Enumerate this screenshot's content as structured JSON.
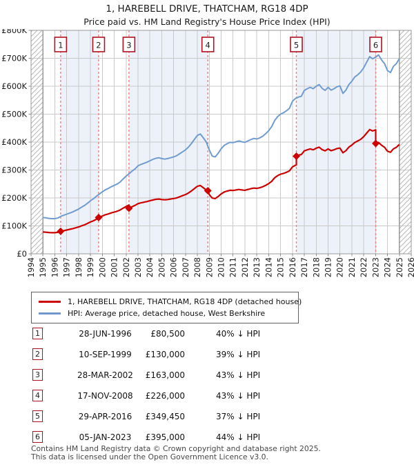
{
  "header": {
    "title": "1, HAREBELL DRIVE, THATCHAM, RG18 4DP",
    "subtitle": "Price paid vs. HM Land Registry's House Price Index (HPI)"
  },
  "legend": {
    "items": [
      {
        "label": "1, HAREBELL DRIVE, THATCHAM, RG18 4DP (detached house)",
        "color": "#cc0000"
      },
      {
        "label": "HPI: Average price, detached house, West Berkshire",
        "color": "#7098cc"
      }
    ]
  },
  "chart_data": {
    "type": "line",
    "title": "1, HAREBELL DRIVE, THATCHAM, RG18 4DP",
    "subtitle": "Price paid vs. HM Land Registry's House Price Index (HPI)",
    "ylabel": "",
    "xlabel": "",
    "ylim": [
      0,
      800000
    ],
    "xlim": [
      1994,
      2026
    ],
    "grid": true,
    "legend_position": "below",
    "y_tick_labels": [
      "£0",
      "£100K",
      "£200K",
      "£300K",
      "£400K",
      "£500K",
      "£600K",
      "£700K",
      "£800K"
    ],
    "x_tick_labels": [
      "1994",
      "1995",
      "1996",
      "1997",
      "1998",
      "1999",
      "2000",
      "2001",
      "2002",
      "2003",
      "2004",
      "2005",
      "2006",
      "2007",
      "2008",
      "2009",
      "2010",
      "2011",
      "2012",
      "2013",
      "2014",
      "2015",
      "2016",
      "2017",
      "2018",
      "2019",
      "2020",
      "2021",
      "2022",
      "2023",
      "2024",
      "2025",
      "2026"
    ],
    "colors": {
      "property": "#cc0000",
      "hpi": "#6f9bd1",
      "band": "#edf1fa",
      "dashed": "#f07e7e",
      "grid": "#c9c9c9",
      "border": "#999999",
      "hatch": "#b8b8b8",
      "badge_border": "#b01020"
    },
    "data_start_year": 1995.0,
    "data_end_year": 2025.0,
    "hatch_regions": [
      [
        1994,
        1995
      ],
      [
        2025,
        2026
      ]
    ],
    "series": [
      {
        "name": "HPI: Average price, detached house, West Berkshire",
        "role": "hpi",
        "start_year": 1995.0,
        "step_years": 0.25,
        "values_gbp": [
          130000,
          129000,
          127000,
          126000,
          126000,
          128000,
          134000,
          138000,
          142000,
          146000,
          150000,
          155000,
          160000,
          167000,
          173000,
          181000,
          190000,
          197000,
          206000,
          214000,
          222000,
          229000,
          234000,
          240000,
          245000,
          250000,
          257000,
          268000,
          278000,
          287000,
          296000,
          304000,
          315000,
          320000,
          324000,
          328000,
          333000,
          338000,
          342000,
          344000,
          341000,
          339000,
          341000,
          344000,
          347000,
          351000,
          358000,
          365000,
          372000,
          382000,
          395000,
          410000,
          424000,
          429000,
          415000,
          400000,
          372000,
          350000,
          347000,
          360000,
          376000,
          388000,
          394000,
          399000,
          398000,
          401000,
          404000,
          401000,
          399000,
          404000,
          409000,
          413000,
          411000,
          415000,
          421000,
          430000,
          441000,
          455000,
          477000,
          491000,
          500000,
          505000,
          512000,
          521000,
          546000,
          556000,
          561000,
          564000,
          585000,
          591000,
          596000,
          591000,
          600000,
          606000,
          592000,
          585000,
          596000,
          586000,
          591000,
          598000,
          601000,
          574000,
          586000,
          606000,
          618000,
          633000,
          641000,
          651000,
          666000,
          686000,
          706000,
          698000,
          704000,
          712000,
          694000,
          681000,
          656000,
          649000,
          671000,
          681000,
          699000
        ]
      },
      {
        "name": "1, HAREBELL DRIVE, THATCHAM, RG18 4DP (detached house)",
        "role": "property",
        "model": "hpi_times_ratio",
        "ratios": [
          {
            "from_year": 1995.0,
            "ratio": 0.6
          },
          {
            "from_year": 1996.49,
            "ratio": 0.6
          },
          {
            "from_year": 1999.69,
            "ratio": 0.61
          },
          {
            "from_year": 2002.24,
            "ratio": 0.57
          },
          {
            "from_year": 2008.88,
            "ratio": 0.57
          },
          {
            "from_year": 2016.33,
            "ratio": 0.63
          },
          {
            "from_year": 2023.01,
            "ratio": 0.56
          }
        ]
      }
    ],
    "sales": [
      {
        "n": "1",
        "date": "28-JUN-1996",
        "year": 1996.49,
        "price_gbp": 80500,
        "pct_vs_hpi": "40% ↓ HPI"
      },
      {
        "n": "2",
        "date": "10-SEP-1999",
        "year": 1999.69,
        "price_gbp": 130000,
        "pct_vs_hpi": "39% ↓ HPI"
      },
      {
        "n": "3",
        "date": "28-MAR-2002",
        "year": 2002.24,
        "price_gbp": 163000,
        "pct_vs_hpi": "43% ↓ HPI"
      },
      {
        "n": "4",
        "date": "17-NOV-2008",
        "year": 2008.88,
        "price_gbp": 226000,
        "pct_vs_hpi": "43% ↓ HPI"
      },
      {
        "n": "5",
        "date": "29-APR-2016",
        "year": 2016.33,
        "price_gbp": 349450,
        "pct_vs_hpi": "37% ↓ HPI"
      },
      {
        "n": "6",
        "date": "05-JAN-2023",
        "year": 2023.01,
        "price_gbp": 395000,
        "pct_vs_hpi": "44% ↓ HPI"
      }
    ],
    "shaded_bands_between_sales": [
      [
        0,
        1
      ],
      [
        2,
        3
      ],
      [
        4,
        5
      ]
    ]
  },
  "table": {
    "rows": [
      {
        "n": "1",
        "date": "28-JUN-1996",
        "price": "£80,500",
        "hpi": "40% ↓ HPI"
      },
      {
        "n": "2",
        "date": "10-SEP-1999",
        "price": "£130,000",
        "hpi": "39% ↓ HPI"
      },
      {
        "n": "3",
        "date": "28-MAR-2002",
        "price": "£163,000",
        "hpi": "43% ↓ HPI"
      },
      {
        "n": "4",
        "date": "17-NOV-2008",
        "price": "£226,000",
        "hpi": "43% ↓ HPI"
      },
      {
        "n": "5",
        "date": "29-APR-2016",
        "price": "£349,450",
        "hpi": "37% ↓ HPI"
      },
      {
        "n": "6",
        "date": "05-JAN-2023",
        "price": "£395,000",
        "hpi": "44% ↓ HPI"
      }
    ]
  },
  "footer": {
    "line1": "Contains HM Land Registry data © Crown copyright and database right 2025.",
    "line2": "This data is licensed under the Open Government Licence v3.0."
  }
}
